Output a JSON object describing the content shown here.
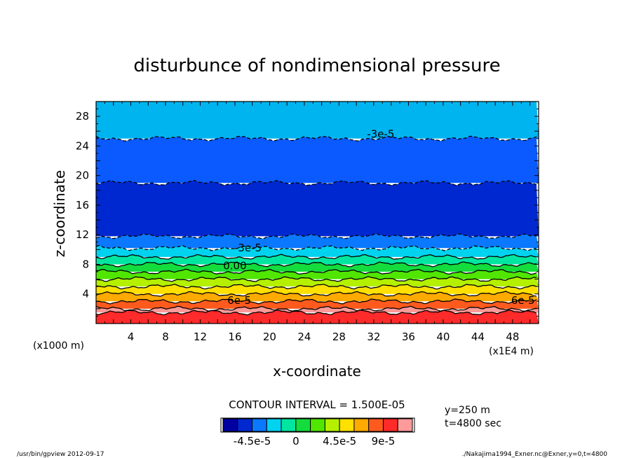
{
  "chart_data": {
    "type": "heatmap",
    "title": "disturbunce of nondimensional pressure",
    "xlabel": "x-coordinate",
    "ylabel": "z-coordinate",
    "x_unit_left": "(x1000 m)",
    "x_unit_right": "(x1E4 m)",
    "xlim": [
      0,
      51
    ],
    "ylim": [
      0,
      30
    ],
    "xticks": [
      4,
      8,
      12,
      16,
      20,
      24,
      28,
      32,
      36,
      40,
      44,
      48
    ],
    "yticks": [
      4,
      8,
      12,
      16,
      20,
      24,
      28
    ],
    "contour_interval_label": "CONTOUR INTERVAL = 1.500E-05",
    "info_lines": [
      "y=250 m",
      "t=4800 sec"
    ],
    "contour_labels": [
      {
        "text": "-3e-5",
        "x": 32.8,
        "z": 25.6
      },
      {
        "text": "-3e-5",
        "x": 17.5,
        "z": 10.2
      },
      {
        "text": "0.00",
        "x": 16,
        "z": 7.8
      },
      {
        "text": "6e-5",
        "x": 16.5,
        "z": 3.1
      },
      {
        "text": "6e-5",
        "x": 49.2,
        "z": 3.1
      }
    ],
    "bands": [
      {
        "z0": 0.0,
        "z1": 1.5,
        "value": 0.000105,
        "color": "#ff2a2a"
      },
      {
        "z0": 1.5,
        "z1": 2.0,
        "value": 0.00012,
        "color": "#ff9a9a"
      },
      {
        "z0": 2.0,
        "z1": 3.0,
        "value": 9e-05,
        "color": "#ff5a1e"
      },
      {
        "z0": 3.0,
        "z1": 4.0,
        "value": 7.5e-05,
        "color": "#ffaa00"
      },
      {
        "z0": 4.0,
        "z1": 5.0,
        "value": 6e-05,
        "color": "#ffe000"
      },
      {
        "z0": 5.0,
        "z1": 6.0,
        "value": 4.5e-05,
        "color": "#b4f000"
      },
      {
        "z0": 6.0,
        "z1": 7.0,
        "value": 3e-05,
        "color": "#50e600"
      },
      {
        "z0": 7.0,
        "z1": 8.0,
        "value": 1.5e-05,
        "color": "#14dc3c"
      },
      {
        "z0": 8.0,
        "z1": 9.0,
        "value": 0,
        "color": "#00e6a0"
      },
      {
        "z0": 9.0,
        "z1": 10.2,
        "value": -1.5e-05,
        "color": "#00d2f0"
      },
      {
        "z0": 10.2,
        "z1": 11.8,
        "value": -3e-05,
        "color": "#0a78ff"
      },
      {
        "z0": 11.8,
        "z1": 19.0,
        "value": -4.5e-05,
        "color": "#0028d0"
      },
      {
        "z0": 19.0,
        "z1": 25.0,
        "value": -3e-05,
        "color": "#0a5aff"
      },
      {
        "z0": 25.0,
        "z1": 30.0,
        "value": -1.5e-05,
        "color": "#00b4f0"
      }
    ],
    "colorbar": {
      "colors": [
        "#0000a0",
        "#0028d0",
        "#0a78ff",
        "#00d2f0",
        "#00e6a0",
        "#14dc3c",
        "#50e600",
        "#b4f000",
        "#ffe000",
        "#ffaa00",
        "#ff5a1e",
        "#ff2a2a",
        "#ff9a9a"
      ],
      "tick_labels": [
        "-4.5e-5",
        "0",
        "4.5e-5",
        "9e-5"
      ]
    }
  },
  "footer": {
    "left": "/usr/bin/gpview  2012-09-17",
    "right": "./Nakajima1994_Exner.nc@Exner,y=0,t=4800"
  }
}
